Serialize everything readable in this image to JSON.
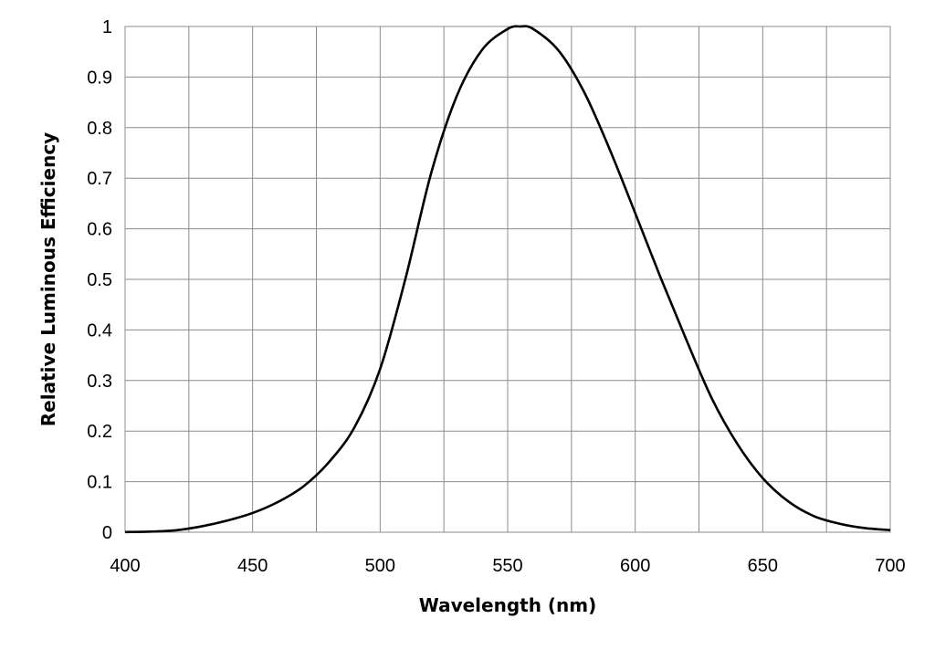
{
  "chart_data": {
    "type": "line",
    "title": "",
    "xlabel": "Wavelength (nm)",
    "ylabel": "Relative Luminous Efficiency",
    "xlim": [
      400,
      700
    ],
    "ylim": [
      0,
      1
    ],
    "x_ticks": [
      "400",
      "450",
      "500",
      "550",
      "600",
      "650",
      "700"
    ],
    "y_ticks": [
      "0",
      "0.1",
      "0.2",
      "0.3",
      "0.4",
      "0.5",
      "0.6",
      "0.7",
      "0.8",
      "0.9",
      "1"
    ],
    "grid": true,
    "legend": "none",
    "series": [
      {
        "line_color": "#000000",
        "x": [
          400,
          410,
          420,
          430,
          440,
          450,
          460,
          470,
          480,
          490,
          500,
          510,
          520,
          530,
          540,
          550,
          555,
          560,
          570,
          580,
          590,
          600,
          610,
          620,
          630,
          640,
          650,
          660,
          670,
          680,
          690,
          700
        ],
        "y": [
          0.0004,
          0.0012,
          0.004,
          0.0116,
          0.023,
          0.038,
          0.06,
          0.091,
          0.139,
          0.208,
          0.323,
          0.503,
          0.71,
          0.862,
          0.954,
          0.995,
          1.0,
          0.995,
          0.952,
          0.87,
          0.757,
          0.631,
          0.503,
          0.381,
          0.265,
          0.175,
          0.107,
          0.061,
          0.032,
          0.017,
          0.0082,
          0.0041
        ]
      }
    ]
  }
}
